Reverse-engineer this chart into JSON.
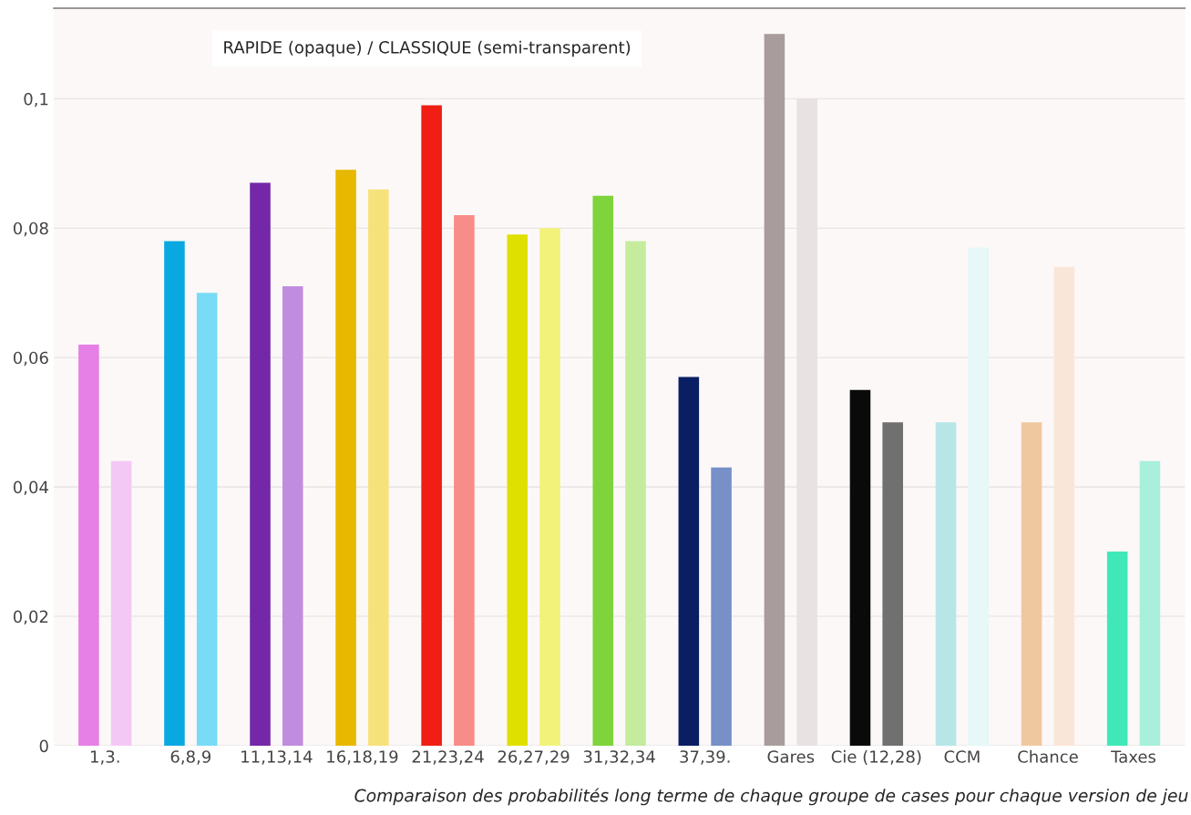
{
  "chart_data": {
    "type": "bar",
    "categories": [
      "1,3.",
      "6,8,9",
      "11,13,14",
      "16,18,19",
      "21,23,24",
      "26,27,29",
      "31,32,34",
      "37,39.",
      "Gares",
      "Cie (12,28)",
      "CCM",
      "Chance",
      "Taxes"
    ],
    "series": [
      {
        "values": [
          0.062,
          0.078,
          0.087,
          0.089,
          0.099,
          0.079,
          0.085,
          0.057,
          0.11,
          0.055,
          0.05,
          0.05,
          0.03
        ],
        "colors": [
          "#e67fe6",
          "#0aa8e0",
          "#7428a8",
          "#e8b800",
          "#f01e14",
          "#e0e000",
          "#7ed43a",
          "#0a1e64",
          "#a89c9c",
          "#0a0a0a",
          "#b8e6e6",
          "#f0c8a0",
          "#40e8b8"
        ]
      },
      {
        "values": [
          0.044,
          0.07,
          0.071,
          0.086,
          0.082,
          0.08,
          0.078,
          0.043,
          0.1,
          0.05,
          0.077,
          0.074,
          0.044
        ],
        "colors": [
          "#f4c8f4",
          "#78dcf6",
          "#c08ce0",
          "#f6e27a",
          "#f88c88",
          "#f2f27a",
          "#c4ec9c",
          "#7890c8",
          "#e8e2e2",
          "#707070",
          "#e6f8f8",
          "#fae6d8",
          "#a8f0dc"
        ]
      }
    ],
    "ylim": [
      0,
      0.114
    ],
    "yticks": [
      {
        "value": 0,
        "label": "0"
      },
      {
        "value": 0.02,
        "label": "0,02"
      },
      {
        "value": 0.04,
        "label": "0,04"
      },
      {
        "value": 0.06,
        "label": "0,06"
      },
      {
        "value": 0.08,
        "label": "0,08"
      },
      {
        "value": 0.1,
        "label": "0,1"
      }
    ],
    "grid": "y",
    "annotations": [
      "RAPIDE (opaque) / CLASSIQUE (semi-transparent)",
      "Comparaison des probabilités long terme de chaque groupe de cases pour chaque version de jeu"
    ]
  }
}
